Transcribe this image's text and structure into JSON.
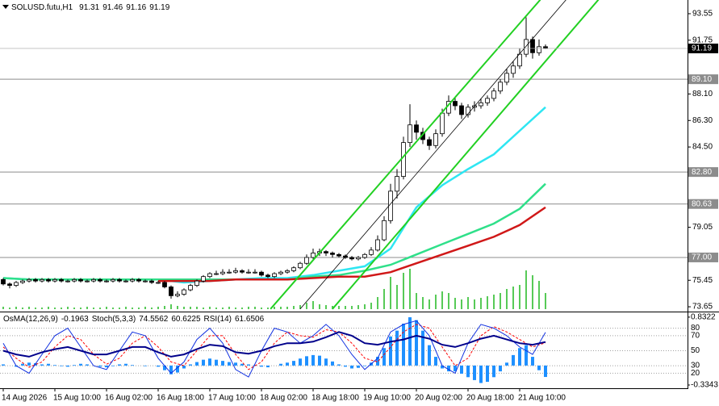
{
  "chart_data": {
    "type": "candlestick",
    "title": "SOLUSD.futu,H1",
    "categories": [
      "14 Aug 2026",
      null,
      null,
      null,
      null,
      null,
      null,
      null,
      "15 Aug 10:00",
      null,
      null,
      null,
      null,
      null,
      null,
      null,
      "16 Aug 02:00",
      null,
      null,
      null,
      null,
      null,
      null,
      null,
      "16 Aug 18:00",
      null,
      null,
      null,
      null,
      null,
      null,
      null,
      "17 Aug 10:00",
      null,
      null,
      null,
      null,
      null,
      null,
      null,
      "18 Aug 02:00",
      null,
      null,
      null,
      null,
      null,
      null,
      null,
      "18 Aug 18:00",
      null,
      null,
      null,
      null,
      null,
      null,
      null,
      "19 Aug 10:00",
      null,
      null,
      null,
      null,
      null,
      null,
      null,
      "20 Aug 02:00",
      null,
      null,
      null,
      null,
      null,
      null,
      null,
      "20 Aug 18:00",
      null,
      null,
      null,
      null,
      null,
      null,
      null,
      "21 Aug 10:00",
      null,
      null,
      null,
      null
    ],
    "open": [
      75.5,
      75.2,
      75.1,
      75.3,
      75.4,
      75.5,
      75.4,
      75.5,
      75.4,
      75.5,
      75.4,
      75.4,
      75.5,
      75.4,
      75.4,
      75.5,
      75.4,
      75.4,
      75.5,
      75.4,
      75.4,
      75.5,
      75.4,
      75.4,
      75.3,
      75.3,
      75.0,
      74.4,
      74.5,
      74.8,
      75.1,
      75.4,
      75.7,
      75.9,
      75.9,
      76.0,
      76.0,
      76.1,
      76.0,
      76.0,
      76.0,
      75.8,
      75.7,
      75.9,
      76.0,
      76.1,
      76.3,
      76.6,
      77.0,
      77.3,
      77.4,
      77.3,
      77.2,
      77.1,
      77.0,
      76.9,
      77.0,
      77.2,
      77.5,
      78.2,
      79.5,
      81.5,
      82.5,
      84.8,
      86.0,
      85.5,
      85.0,
      84.6,
      85.4,
      86.8,
      87.6,
      87.3,
      86.7,
      87.2,
      87.3,
      87.5,
      87.8,
      88.3,
      88.9,
      89.5,
      90.0,
      90.8,
      91.8,
      90.9,
      91.31
    ],
    "high": [
      75.6,
      75.3,
      75.4,
      75.5,
      75.6,
      75.6,
      75.6,
      75.6,
      75.6,
      75.6,
      75.5,
      75.6,
      75.6,
      75.5,
      75.6,
      75.6,
      75.5,
      75.6,
      75.6,
      75.5,
      75.6,
      75.6,
      75.5,
      75.5,
      75.4,
      75.4,
      75.1,
      74.7,
      74.9,
      75.2,
      75.5,
      75.8,
      76.0,
      76.1,
      76.2,
      76.2,
      76.3,
      76.2,
      76.2,
      76.2,
      76.1,
      75.9,
      76.0,
      76.1,
      76.2,
      76.4,
      76.7,
      77.2,
      77.6,
      77.6,
      77.5,
      77.4,
      77.3,
      77.2,
      77.1,
      77.1,
      77.3,
      77.7,
      78.5,
      79.8,
      82.0,
      83.0,
      85.2,
      87.4,
      86.3,
      85.8,
      85.2,
      85.7,
      87.1,
      88.0,
      87.9,
      87.5,
      87.4,
      87.6,
      87.8,
      88.0,
      88.5,
      89.1,
      89.8,
      90.3,
      91.2,
      93.3,
      92.0,
      91.8,
      91.46
    ],
    "low": [
      75.1,
      74.9,
      75.0,
      75.2,
      75.3,
      75.3,
      75.3,
      75.3,
      75.3,
      75.3,
      75.3,
      75.3,
      75.3,
      75.3,
      75.3,
      75.3,
      75.3,
      75.3,
      75.3,
      75.3,
      75.3,
      75.3,
      75.3,
      75.2,
      75.2,
      74.9,
      74.2,
      74.3,
      74.4,
      74.7,
      75.0,
      75.3,
      75.6,
      75.8,
      75.8,
      75.9,
      75.9,
      75.9,
      75.9,
      75.9,
      75.7,
      75.6,
      75.6,
      75.8,
      75.9,
      76.0,
      76.2,
      76.5,
      76.9,
      77.1,
      77.1,
      77.0,
      77.0,
      76.9,
      76.8,
      76.8,
      76.9,
      77.1,
      77.4,
      78.1,
      79.3,
      81.0,
      82.3,
      84.5,
      85.0,
      84.7,
      84.3,
      84.4,
      85.2,
      86.6,
      87.0,
      86.4,
      86.5,
      86.9,
      87.1,
      87.3,
      87.6,
      88.1,
      88.7,
      89.2,
      89.8,
      90.6,
      90.5,
      90.7,
      91.16
    ],
    "close": [
      75.2,
      75.1,
      75.3,
      75.4,
      75.5,
      75.4,
      75.5,
      75.4,
      75.5,
      75.4,
      75.4,
      75.5,
      75.4,
      75.4,
      75.5,
      75.4,
      75.4,
      75.5,
      75.4,
      75.4,
      75.5,
      75.4,
      75.4,
      75.3,
      75.3,
      75.0,
      74.4,
      74.5,
      74.8,
      75.1,
      75.4,
      75.7,
      75.9,
      75.9,
      76.0,
      76.0,
      76.1,
      76.0,
      76.0,
      76.0,
      75.8,
      75.7,
      75.9,
      76.0,
      76.1,
      76.3,
      76.6,
      77.0,
      77.3,
      77.4,
      77.3,
      77.2,
      77.1,
      77.0,
      76.9,
      77.0,
      77.2,
      77.5,
      78.2,
      79.5,
      81.5,
      82.5,
      84.8,
      86.0,
      85.5,
      85.0,
      84.6,
      85.4,
      86.8,
      87.6,
      87.3,
      86.7,
      87.2,
      87.3,
      87.5,
      87.8,
      88.3,
      88.9,
      89.5,
      90.0,
      90.8,
      91.8,
      90.9,
      91.31,
      91.19
    ],
    "up_color": "#ffffff",
    "down_color": "#000000",
    "ylim": [
      73.38,
      94.48
    ],
    "yticks": [
      93.55,
      91.75,
      {
        "value": 88.1,
        "label": "88.10"
      },
      {
        "value": 86.3,
        "label": "86.30"
      },
      {
        "value": 84.5,
        "label": "84.50"
      },
      79.05,
      75.45,
      73.65
    ],
    "grid": false,
    "hlines": [
      {
        "value": 89.1,
        "label": "89.10"
      },
      {
        "value": 82.8,
        "label": "82.80"
      },
      80.63,
      {
        "value": 77,
        "label": "77.00"
      }
    ],
    "series": [
      {
        "color": "#2ee6f2",
        "x": [
          0,
          4,
          8,
          12,
          16,
          20,
          24,
          28,
          32,
          36,
          40,
          44,
          48,
          52,
          56,
          60,
          64,
          68,
          72,
          76,
          80,
          84
        ],
        "values": [
          75.6,
          75.5,
          75.5,
          75.5,
          75.5,
          75.5,
          75.5,
          75.3,
          75.4,
          75.5,
          75.6,
          75.6,
          75.8,
          76.1,
          76.4,
          77.6,
          80.4,
          81.9,
          83.0,
          84.0,
          85.6,
          87.2
        ]
      },
      {
        "color": "#2fe08a",
        "x": [
          0,
          4,
          8,
          12,
          16,
          20,
          24,
          28,
          32,
          36,
          40,
          44,
          48,
          52,
          56,
          60,
          64,
          68,
          72,
          76,
          80,
          84
        ],
        "values": [
          75.6,
          75.5,
          75.5,
          75.5,
          75.5,
          75.5,
          75.5,
          75.5,
          75.5,
          75.5,
          75.5,
          75.5,
          75.7,
          75.8,
          76.1,
          76.5,
          77.2,
          77.9,
          78.6,
          79.3,
          80.3,
          82.0
        ]
      },
      {
        "color": "#d01818",
        "x": [
          24,
          28,
          32,
          36,
          40,
          44,
          48,
          52,
          56,
          60,
          64,
          68,
          72,
          76,
          80,
          84
        ],
        "values": [
          75.4,
          75.4,
          75.4,
          75.5,
          75.5,
          75.5,
          75.6,
          75.7,
          75.7,
          76.0,
          76.6,
          77.2,
          77.8,
          78.4,
          79.2,
          80.4
        ]
      }
    ],
    "trendlines": [
      {
        "color": "#22d022",
        "x": [
          41.4,
          83.2
        ],
        "values": [
          73.5,
          94.5
        ]
      },
      {
        "color": "#22d022",
        "x": [
          51,
          92.2
        ],
        "values": [
          73.5,
          94.5
        ]
      },
      {
        "color": "#000000",
        "x": [
          46,
          87.2
        ],
        "values": [
          73.5,
          94.5
        ]
      }
    ],
    "volume": {
      "color": "#1fb81f",
      "ylim": [
        0,
        100
      ],
      "values": [
        3,
        2,
        3,
        2,
        3,
        2,
        2,
        3,
        2,
        2,
        3,
        2,
        2,
        3,
        2,
        2,
        3,
        2,
        2,
        3,
        2,
        2,
        3,
        2,
        3,
        4,
        6,
        4,
        3,
        3,
        3,
        2,
        3,
        2,
        2,
        3,
        2,
        2,
        3,
        3,
        2,
        2,
        3,
        3,
        3,
        4,
        5,
        8,
        10,
        6,
        5,
        4,
        4,
        4,
        4,
        5,
        6,
        8,
        15,
        25,
        40,
        30,
        45,
        50,
        20,
        15,
        12,
        18,
        22,
        20,
        14,
        12,
        15,
        12,
        14,
        16,
        18,
        20,
        25,
        28,
        30,
        48,
        42,
        35,
        20
      ]
    },
    "indicator": {
      "ylim": [
        0,
        100
      ],
      "yticks": [
        80,
        70,
        50,
        30,
        20
      ],
      "y2lim": [
        -0.39,
        0.9
      ],
      "y2ticks": [
        0.8322,
        -0.3343
      ],
      "osma": {
        "name": "OsMA(12,26,9)",
        "color": "#1e90ff",
        "axis": "y2",
        "values": [
          0.02,
          0.0,
          -0.02,
          0.03,
          0.05,
          0.04,
          0.02,
          0.03,
          0.01,
          -0.01,
          -0.02,
          0.01,
          0.03,
          0.02,
          0.0,
          -0.02,
          -0.03,
          -0.01,
          0.02,
          0.03,
          0.01,
          0.0,
          -0.01,
          0.0,
          -0.02,
          -0.08,
          -0.15,
          -0.12,
          -0.05,
          0.02,
          0.06,
          0.1,
          0.12,
          0.1,
          0.08,
          0.06,
          0.05,
          0.03,
          0.02,
          0.01,
          -0.02,
          -0.03,
          0.0,
          0.03,
          0.05,
          0.08,
          0.12,
          0.16,
          0.18,
          0.17,
          0.12,
          0.07,
          0.02,
          -0.02,
          -0.05,
          -0.04,
          -0.01,
          0.05,
          0.15,
          0.3,
          0.5,
          0.6,
          0.72,
          0.83,
          0.78,
          0.6,
          0.35,
          0.15,
          -0.05,
          -0.1,
          -0.1,
          -0.14,
          -0.2,
          -0.25,
          -0.3,
          -0.28,
          -0.2,
          -0.1,
          0.05,
          0.18,
          0.3,
          0.35,
          0.15,
          -0.08,
          -0.1963
        ]
      },
      "x": [
        0,
        2,
        4,
        6,
        8,
        10,
        12,
        14,
        16,
        18,
        20,
        22,
        24,
        26,
        28,
        30,
        32,
        34,
        36,
        38,
        40,
        42,
        44,
        46,
        48,
        50,
        52,
        54,
        56,
        58,
        60,
        62,
        64,
        66,
        68,
        70,
        72,
        74,
        76,
        78,
        80,
        82,
        84
      ],
      "stoch": {
        "name": "Stoch(5,3,3)",
        "main": {
          "color": "#1030e0",
          "values": [
            60,
            30,
            20,
            45,
            70,
            80,
            55,
            30,
            25,
            50,
            75,
            70,
            40,
            20,
            35,
            65,
            80,
            60,
            25,
            15,
            50,
            80,
            75,
            60,
            70,
            85,
            70,
            45,
            25,
            40,
            75,
            85,
            90,
            70,
            30,
            20,
            60,
            85,
            80,
            70,
            55,
            45,
            74.5562
          ]
        },
        "signal": {
          "color": "#ff0000",
          "values": [
            55,
            40,
            28,
            35,
            55,
            70,
            65,
            45,
            32,
            40,
            60,
            70,
            55,
            35,
            30,
            50,
            70,
            70,
            45,
            25,
            35,
            60,
            75,
            70,
            68,
            78,
            75,
            60,
            40,
            35,
            55,
            75,
            85,
            80,
            55,
            30,
            40,
            70,
            82,
            75,
            65,
            55,
            60.6225
          ]
        }
      },
      "rsi": {
        "name": "RSI(14)",
        "color": "#00008b",
        "values": [
          50,
          45,
          42,
          48,
          52,
          55,
          50,
          45,
          45,
          50,
          55,
          55,
          48,
          42,
          45,
          52,
          58,
          56,
          48,
          46,
          50,
          56,
          60,
          60,
          62,
          68,
          75,
          70,
          60,
          58,
          62,
          65,
          70,
          66,
          58,
          55,
          60,
          66,
          70,
          65,
          60,
          58,
          61.6506
        ]
      }
    }
  }
}
